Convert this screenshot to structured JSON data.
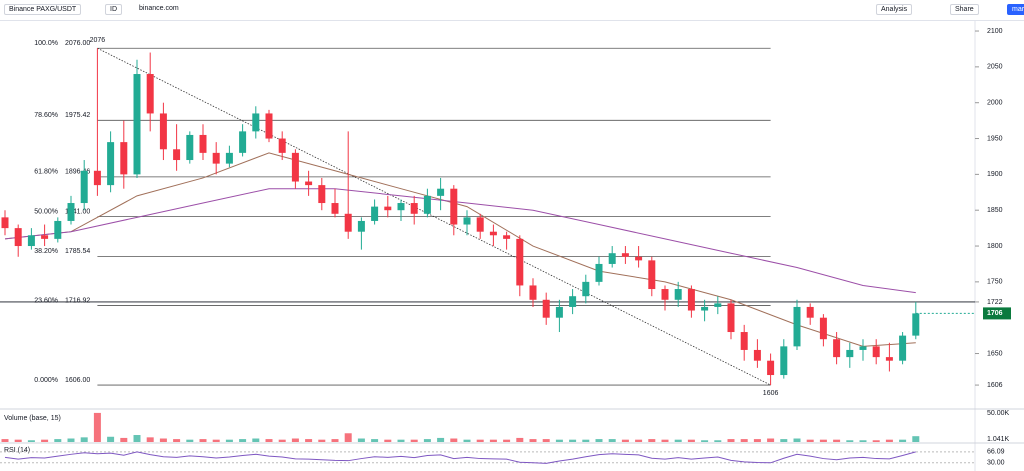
{
  "toolbar": {
    "symbol": "Binance PAXG/USDT",
    "id": "ID",
    "source": "binance.com",
    "analysis": "Analysis",
    "share": "Share",
    "more": "mar"
  },
  "chart_data": [
    {
      "type": "candlestick",
      "ylim": [
        1574,
        2114
      ],
      "yticks": [
        1606,
        1650,
        1722,
        1750,
        1800,
        1850,
        1900,
        1950,
        2000,
        2050,
        2100
      ],
      "grid": false,
      "up_color": "#22ab94",
      "down_color": "#f23645",
      "hlines": [
        1722
      ],
      "last_price": 1706,
      "extremes": [
        2076,
        1606
      ],
      "fib_levels": [
        {
          "ratio": "100.0%",
          "value": 2076,
          "label": "2076.00"
        },
        {
          "ratio": "78.60%",
          "value": 1975.42,
          "label": "1975.42"
        },
        {
          "ratio": "61.80%",
          "value": 1896.46,
          "label": "1896.46"
        },
        {
          "ratio": "50.00%",
          "value": 1841,
          "label": "1841.00"
        },
        {
          "ratio": "38.20%",
          "value": 1785.54,
          "label": "1785.54"
        },
        {
          "ratio": "23.60%",
          "value": 1716.92,
          "label": "1716.92"
        },
        {
          "ratio": "0.000%",
          "value": 1606,
          "label": "1606.00"
        }
      ],
      "ohlc": [
        [
          1840,
          1850,
          1815,
          1825
        ],
        [
          1825,
          1830,
          1785,
          1800
        ],
        [
          1800,
          1825,
          1795,
          1815
        ],
        [
          1815,
          1830,
          1800,
          1810
        ],
        [
          1810,
          1840,
          1805,
          1835
        ],
        [
          1835,
          1870,
          1830,
          1860
        ],
        [
          1860,
          1920,
          1850,
          1905
        ],
        [
          1905,
          2076,
          1870,
          1885
        ],
        [
          1885,
          1960,
          1875,
          1945
        ],
        [
          1945,
          1975,
          1880,
          1900
        ],
        [
          1900,
          2060,
          1895,
          2040
        ],
        [
          2040,
          2070,
          1960,
          1985
        ],
        [
          1985,
          2000,
          1920,
          1935
        ],
        [
          1935,
          1970,
          1905,
          1920
        ],
        [
          1920,
          1960,
          1915,
          1955
        ],
        [
          1955,
          1970,
          1920,
          1930
        ],
        [
          1930,
          1945,
          1900,
          1915
        ],
        [
          1915,
          1940,
          1910,
          1930
        ],
        [
          1930,
          1970,
          1925,
          1960
        ],
        [
          1960,
          1995,
          1950,
          1985
        ],
        [
          1985,
          1990,
          1945,
          1950
        ],
        [
          1950,
          1960,
          1920,
          1930
        ],
        [
          1930,
          1935,
          1880,
          1890
        ],
        [
          1890,
          1905,
          1870,
          1885
        ],
        [
          1885,
          1895,
          1850,
          1860
        ],
        [
          1860,
          1880,
          1840,
          1845
        ],
        [
          1845,
          1960,
          1810,
          1820
        ],
        [
          1820,
          1840,
          1795,
          1835
        ],
        [
          1835,
          1865,
          1830,
          1855
        ],
        [
          1855,
          1870,
          1840,
          1850
        ],
        [
          1850,
          1865,
          1835,
          1860
        ],
        [
          1860,
          1870,
          1830,
          1845
        ],
        [
          1845,
          1880,
          1840,
          1870
        ],
        [
          1870,
          1895,
          1850,
          1880
        ],
        [
          1880,
          1885,
          1815,
          1830
        ],
        [
          1830,
          1850,
          1815,
          1840
        ],
        [
          1840,
          1845,
          1810,
          1820
        ],
        [
          1820,
          1830,
          1800,
          1815
        ],
        [
          1815,
          1820,
          1795,
          1810
        ],
        [
          1810,
          1815,
          1730,
          1745
        ],
        [
          1745,
          1755,
          1715,
          1725
        ],
        [
          1725,
          1735,
          1690,
          1700
        ],
        [
          1700,
          1725,
          1680,
          1715
        ],
        [
          1715,
          1740,
          1705,
          1730
        ],
        [
          1730,
          1760,
          1720,
          1750
        ],
        [
          1750,
          1785,
          1745,
          1775
        ],
        [
          1775,
          1800,
          1770,
          1790
        ],
        [
          1790,
          1800,
          1775,
          1785
        ],
        [
          1785,
          1800,
          1770,
          1780
        ],
        [
          1780,
          1785,
          1730,
          1740
        ],
        [
          1740,
          1745,
          1710,
          1725
        ],
        [
          1725,
          1750,
          1715,
          1740
        ],
        [
          1740,
          1745,
          1700,
          1710
        ],
        [
          1710,
          1725,
          1695,
          1715
        ],
        [
          1715,
          1730,
          1705,
          1720
        ],
        [
          1720,
          1725,
          1670,
          1680
        ],
        [
          1680,
          1690,
          1640,
          1655
        ],
        [
          1655,
          1670,
          1630,
          1640
        ],
        [
          1640,
          1650,
          1606,
          1620
        ],
        [
          1620,
          1670,
          1615,
          1660
        ],
        [
          1660,
          1725,
          1655,
          1715
        ],
        [
          1715,
          1720,
          1690,
          1700
        ],
        [
          1700,
          1705,
          1660,
          1670
        ],
        [
          1670,
          1680,
          1635,
          1645
        ],
        [
          1645,
          1665,
          1630,
          1655
        ],
        [
          1655,
          1670,
          1640,
          1660
        ],
        [
          1660,
          1670,
          1635,
          1645
        ],
        [
          1645,
          1665,
          1625,
          1640
        ],
        [
          1640,
          1680,
          1635,
          1675
        ],
        [
          1675,
          1722,
          1670,
          1706
        ]
      ],
      "lines": [
        {
          "color": "#a1705a",
          "x": [
            0,
            5,
            10,
            15,
            20,
            25,
            30,
            35,
            40,
            45,
            50,
            55,
            60,
            65,
            69
          ],
          "values": [
            1810,
            1820,
            1870,
            1895,
            1930,
            1905,
            1880,
            1855,
            1800,
            1765,
            1750,
            1725,
            1690,
            1660,
            1665
          ]
        },
        {
          "color": "#9c4fa8",
          "x": [
            0,
            5,
            10,
            15,
            20,
            25,
            30,
            35,
            40,
            45,
            50,
            55,
            60,
            65,
            69
          ],
          "values": [
            1810,
            1820,
            1840,
            1860,
            1880,
            1880,
            1870,
            1860,
            1850,
            1830,
            1810,
            1790,
            1770,
            1745,
            1735
          ]
        }
      ]
    },
    {
      "type": "bar",
      "title": "Volume (base, 15)",
      "ylim": [
        0,
        55
      ],
      "yticks": [
        {
          "value": 1.041,
          "label": "1.041K"
        },
        {
          "value": 50,
          "label": "50.00K"
        }
      ],
      "values": [
        5,
        4,
        3,
        4,
        5,
        6,
        8,
        50,
        9,
        7,
        12,
        8,
        6,
        5,
        4,
        5,
        4,
        4,
        5,
        6,
        5,
        4,
        6,
        5,
        4,
        5,
        15,
        6,
        5,
        4,
        4,
        4,
        5,
        7,
        6,
        4,
        4,
        4,
        4,
        7,
        5,
        5,
        4,
        4,
        4,
        5,
        5,
        4,
        4,
        5,
        4,
        4,
        4,
        3,
        3,
        5,
        5,
        5,
        6,
        5,
        6,
        4,
        4,
        4,
        3,
        3,
        3,
        4,
        4,
        10
      ]
    },
    {
      "type": "line",
      "title": "RSI (14)",
      "color": "#7e57c2",
      "ylim": [
        3,
        92
      ],
      "yticks": [
        {
          "value": 30,
          "label": "30.00"
        },
        {
          "value": 66.09,
          "label": "66.09"
        }
      ],
      "values": [
        48,
        42,
        47,
        46,
        52,
        58,
        63,
        60,
        62,
        55,
        66,
        57,
        50,
        48,
        53,
        50,
        46,
        49,
        54,
        58,
        52,
        49,
        43,
        42,
        40,
        38,
        37,
        44,
        50,
        48,
        51,
        47,
        54,
        56,
        44,
        48,
        44,
        43,
        42,
        32,
        30,
        28,
        36,
        42,
        50,
        57,
        60,
        58,
        56,
        45,
        42,
        47,
        42,
        46,
        49,
        38,
        33,
        31,
        30,
        45,
        58,
        52,
        44,
        40,
        46,
        48,
        44,
        43,
        54,
        66.09
      ]
    }
  ]
}
